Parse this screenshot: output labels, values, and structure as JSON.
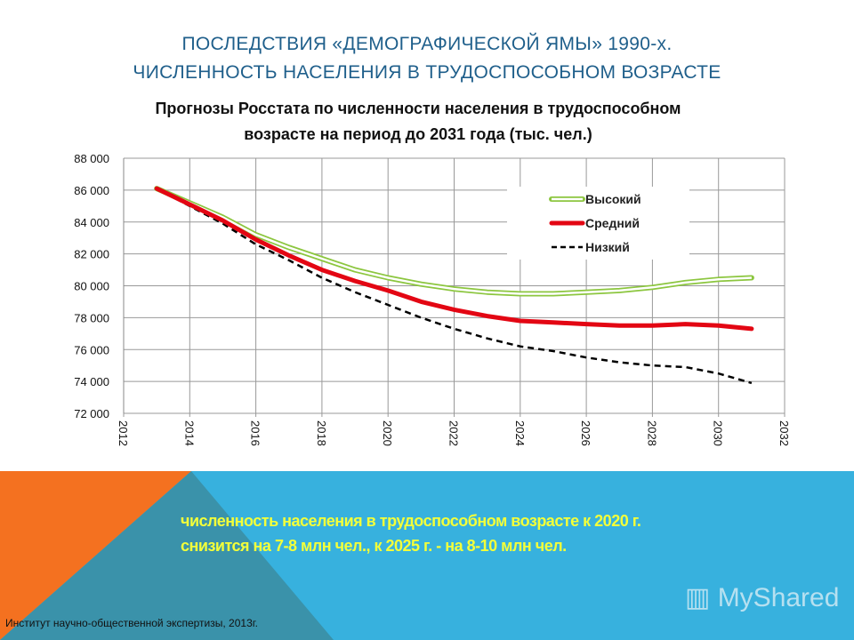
{
  "title_lines": [
    "ПОСЛЕДСТВИЯ «ДЕМОГРАФИЧЕСКОЙ ЯМЫ» 1990-х.",
    "ЧИСЛЕННОСТЬ НАСЕЛЕНИЯ В ТРУДОСПОСОБНОМ ВОЗРАСТЕ"
  ],
  "chart_data": {
    "type": "line",
    "title": "Прогнозы Росстата по численности населения в трудоспособном возрасте на период до 2031 года (тыс. чел.)",
    "title_lines": [
      "Прогнозы Росстата по численности населения в трудоспособном",
      "возрасте на период до 2031 года (тыс. чел.)"
    ],
    "x": [
      2013,
      2014,
      2015,
      2016,
      2017,
      2018,
      2019,
      2020,
      2021,
      2022,
      2023,
      2024,
      2025,
      2026,
      2027,
      2028,
      2029,
      2030,
      2031
    ],
    "xlim": [
      2012,
      2032
    ],
    "ylim": [
      72000,
      88000
    ],
    "x_ticks": [
      "2012",
      "2014",
      "2016",
      "2018",
      "2020",
      "2022",
      "2024",
      "2026",
      "2028",
      "2030",
      "2032"
    ],
    "y_ticks": [
      "72 000",
      "74 000",
      "76 000",
      "78 000",
      "80 000",
      "82 000",
      "84 000",
      "86 000",
      "88 000"
    ],
    "grid": true,
    "legend": "top-right",
    "series": [
      {
        "name": "Высокий",
        "color": "#8cc63f",
        "values": [
          86100,
          85200,
          84300,
          83200,
          82400,
          81700,
          81000,
          80500,
          80100,
          79800,
          79600,
          79500,
          79500,
          79600,
          79700,
          79900,
          80200,
          80400,
          80500
        ]
      },
      {
        "name": "Средний",
        "color": "#e30613",
        "values": [
          86100,
          85100,
          84100,
          82900,
          81900,
          81000,
          80300,
          79700,
          79000,
          78500,
          78100,
          77800,
          77700,
          77600,
          77500,
          77500,
          77600,
          77500,
          77300
        ]
      },
      {
        "name": "Низкий",
        "color": "#000000",
        "values": [
          86100,
          85000,
          83900,
          82600,
          81600,
          80500,
          79600,
          78800,
          78000,
          77300,
          76700,
          76200,
          75900,
          75500,
          75200,
          75000,
          74900,
          74500,
          73900
        ]
      }
    ]
  },
  "note_lines": [
    "численность населения в  трудоспособном возрасте к 2020 г.",
    "снизится на 7-8 млн чел., к 2025 г. - на 8-10 млн чел."
  ],
  "source": "Институт научно-общественной экспертизы, 2013г.",
  "watermark": "MyShared"
}
